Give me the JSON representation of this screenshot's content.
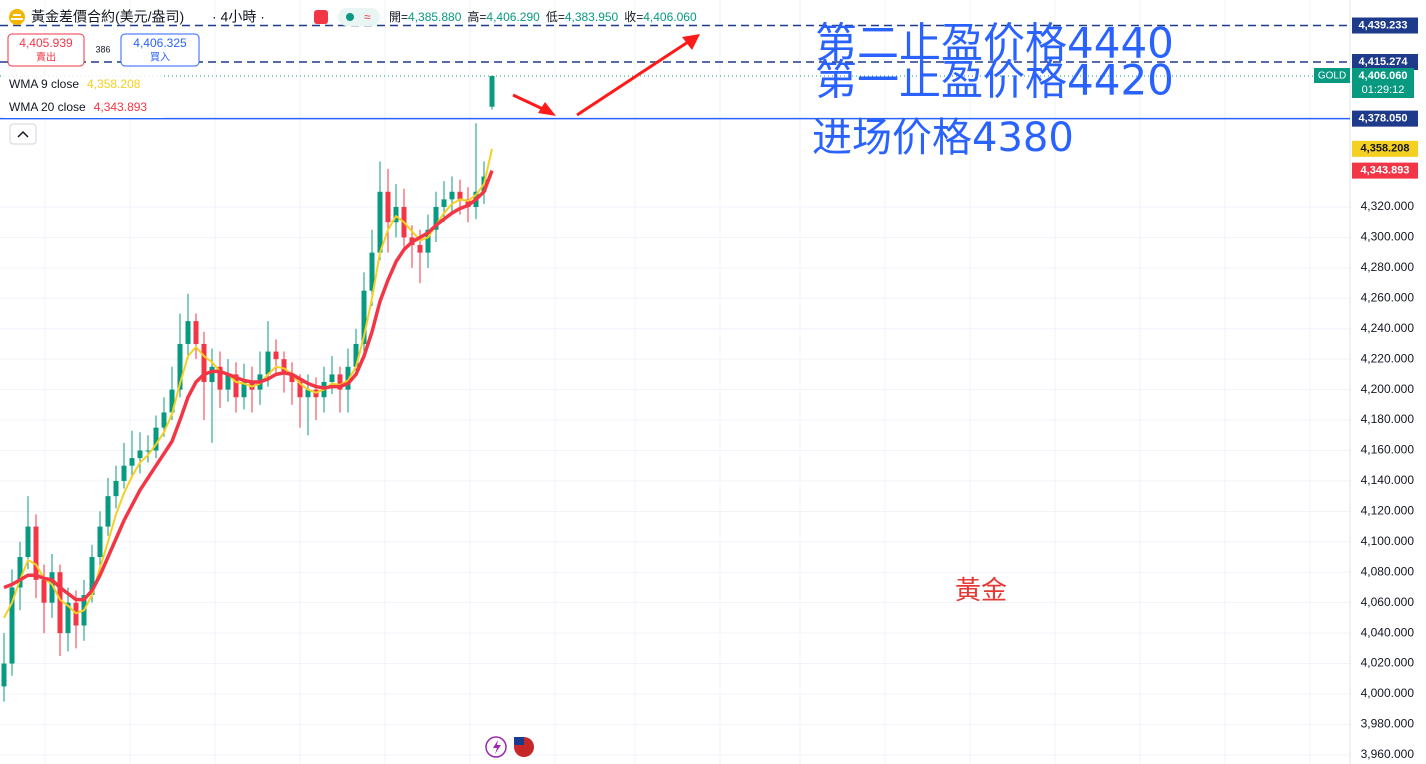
{
  "header": {
    "symbol": "黃金差價合約(美元/盎司)",
    "interval": "· 4小時 ·",
    "ohlc": [
      {
        "label": "開=",
        "value": "4,385.880"
      },
      {
        "label": "高=",
        "value": "4,406.290"
      },
      {
        "label": "低=",
        "value": "4,383.950"
      },
      {
        "label": "收=",
        "value": "4,406.060"
      }
    ]
  },
  "trade": {
    "sell_price": "4,405.939",
    "sell_label": "賣出",
    "spread": "386",
    "buy_price": "4,406.325",
    "buy_label": "買入"
  },
  "chart_data": {
    "type": "candlestick",
    "ylim": [
      3954,
      4456
    ],
    "yticks": [
      {
        "value": 3960,
        "label": "3,960.000"
      },
      {
        "value": 3980,
        "label": "3,980.000"
      },
      {
        "value": 4000,
        "label": "4,000.000"
      },
      {
        "value": 4020,
        "label": "4,020.000"
      },
      {
        "value": 4040,
        "label": "4,040.000"
      },
      {
        "value": 4060,
        "label": "4,060.000"
      },
      {
        "value": 4080,
        "label": "4,080.000"
      },
      {
        "value": 4100,
        "label": "4,100.000"
      },
      {
        "value": 4120,
        "label": "4,120.000"
      },
      {
        "value": 4140,
        "label": "4,140.000"
      },
      {
        "value": 4160,
        "label": "4,160.000"
      },
      {
        "value": 4180,
        "label": "4,180.000"
      },
      {
        "value": 4200,
        "label": "4,200.000"
      },
      {
        "value": 4220,
        "label": "4,220.000"
      },
      {
        "value": 4240,
        "label": "4,240.000"
      },
      {
        "value": 4260,
        "label": "4,260.000"
      },
      {
        "value": 4280,
        "label": "4,280.000"
      },
      {
        "value": 4300,
        "label": "4,300.000"
      },
      {
        "value": 4320,
        "label": "4,320.000"
      }
    ],
    "grid": true,
    "up_color": "#089981",
    "down_color": "#f23645",
    "candles": {
      "open": [
        4005,
        4020,
        4070,
        4090,
        4110,
        4075,
        4060,
        4080,
        4040,
        4060,
        4045,
        4065,
        4090,
        4110,
        4130,
        4140,
        4150,
        4155,
        4160,
        4160,
        4175,
        4185,
        4200,
        4230,
        4245,
        4230,
        4205,
        4215,
        4200,
        4210,
        4195,
        4205,
        4200,
        4210,
        4225,
        4220,
        4210,
        4205,
        4195,
        4200,
        4195,
        4205,
        4210,
        4200,
        4215,
        4230,
        4265,
        4290,
        4330,
        4310,
        4320,
        4300,
        4295,
        4290,
        4305,
        4320,
        4325,
        4330,
        4325,
        4320,
        4330,
        4385.88
      ],
      "high": [
        4040,
        4082,
        4100,
        4130,
        4118,
        4085,
        4092,
        4085,
        4070,
        4068,
        4075,
        4098,
        4120,
        4142,
        4150,
        4165,
        4173,
        4172,
        4170,
        4183,
        4195,
        4215,
        4250,
        4263,
        4250,
        4238,
        4227,
        4225,
        4220,
        4218,
        4217,
        4215,
        4225,
        4245,
        4233,
        4225,
        4218,
        4210,
        4210,
        4208,
        4215,
        4222,
        4215,
        4227,
        4240,
        4277,
        4305,
        4350,
        4345,
        4335,
        4332,
        4308,
        4305,
        4315,
        4330,
        4337,
        4340,
        4338,
        4333,
        4375,
        4350,
        4406.29
      ],
      "low": [
        3995,
        4012,
        4055,
        4082,
        4063,
        4040,
        4050,
        4025,
        4028,
        4030,
        4035,
        4060,
        4082,
        4104,
        4122,
        4135,
        4142,
        4145,
        4152,
        4155,
        4169,
        4180,
        4195,
        4220,
        4220,
        4180,
        4165,
        4188,
        4192,
        4185,
        4187,
        4185,
        4190,
        4202,
        4210,
        4198,
        4190,
        4175,
        4170,
        4180,
        4185,
        4197,
        4185,
        4185,
        4210,
        4225,
        4255,
        4285,
        4290,
        4300,
        4290,
        4280,
        4270,
        4280,
        4297,
        4310,
        4315,
        4315,
        4310,
        4312,
        4322,
        4383.95
      ],
      "close": [
        4020,
        4070,
        4090,
        4110,
        4075,
        4060,
        4080,
        4040,
        4060,
        4045,
        4065,
        4090,
        4110,
        4130,
        4140,
        4150,
        4155,
        4160,
        4160,
        4175,
        4185,
        4200,
        4230,
        4245,
        4230,
        4205,
        4215,
        4200,
        4210,
        4195,
        4205,
        4200,
        4210,
        4225,
        4220,
        4210,
        4205,
        4195,
        4200,
        4195,
        4205,
        4210,
        4200,
        4215,
        4230,
        4265,
        4290,
        4330,
        4310,
        4320,
        4300,
        4295,
        4290,
        4305,
        4320,
        4325,
        4330,
        4325,
        4320,
        4330,
        4340,
        4406.06
      ]
    },
    "series": [
      {
        "name": "WMA 9 close",
        "value_label": "4,358.208",
        "color": "#f5d020",
        "width": 2,
        "values": [
          4050,
          4060,
          4075,
          4088,
          4085,
          4076,
          4072,
          4062,
          4058,
          4053,
          4055,
          4065,
          4083,
          4100,
          4118,
          4132,
          4143,
          4152,
          4157,
          4164,
          4172,
          4184,
          4204,
          4222,
          4228,
          4222,
          4218,
          4212,
          4210,
          4205,
          4204,
          4202,
          4204,
          4210,
          4215,
          4214,
          4210,
          4204,
          4200,
          4198,
          4200,
          4204,
          4203,
          4206,
          4215,
          4235,
          4260,
          4290,
          4305,
          4314,
          4310,
          4304,
          4298,
          4300,
          4308,
          4316,
          4322,
          4325,
          4324,
          4328,
          4335,
          4358.208
        ]
      },
      {
        "name": "WMA 20 close",
        "value_label": "4,343.893",
        "color": "#f23645",
        "width": 3.5,
        "values": [
          4070,
          4072,
          4075,
          4078,
          4078,
          4076,
          4075,
          4070,
          4066,
          4062,
          4062,
          4068,
          4078,
          4090,
          4102,
          4114,
          4124,
          4134,
          4142,
          4150,
          4158,
          4166,
          4180,
          4195,
          4205,
          4210,
          4212,
          4212,
          4210,
          4208,
          4206,
          4205,
          4205,
          4207,
          4210,
          4211,
          4210,
          4207,
          4204,
          4202,
          4201,
          4202,
          4202,
          4204,
          4210,
          4222,
          4238,
          4258,
          4272,
          4284,
          4292,
          4297,
          4300,
          4303,
          4308,
          4312,
          4316,
          4319,
          4321,
          4325,
          4330,
          4343.893
        ]
      }
    ],
    "price_lines": [
      {
        "value": 4439.233,
        "label": "4,439.233",
        "style": "dashed",
        "color": "#1e3a8a",
        "tag_color": "#1e3a8a"
      },
      {
        "value": 4415.274,
        "label": "4,415.274",
        "style": "dashed",
        "color": "#1e3a8a",
        "tag_color": "#1e3a8a"
      },
      {
        "value": 4406.06,
        "label": "4,406.060",
        "style": "dotted",
        "color": "#089981",
        "tag_color": "#089981",
        "symbol": "GOLD",
        "countdown": "01:29:12"
      },
      {
        "value": 4378.05,
        "label": "4,378.050",
        "style": "solid",
        "color": "#2962ff",
        "tag_color": "#1e3a8a"
      }
    ],
    "annotations": [
      {
        "text": "第二止盈价格4440",
        "color": "#2962ff"
      },
      {
        "text": "第一止盈价格4420",
        "color": "#2962ff"
      },
      {
        "text": "进场价格4380",
        "color": "#2962ff"
      },
      {
        "text": "黃金",
        "color": "#e53935"
      }
    ]
  }
}
